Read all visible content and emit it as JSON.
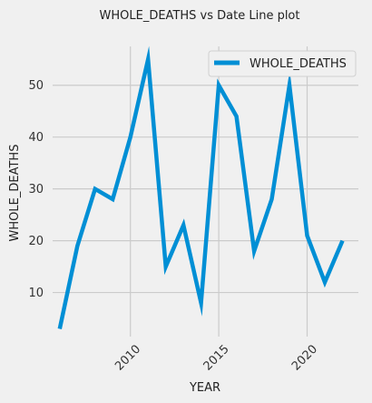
{
  "chart_data": {
    "type": "line",
    "title": "WHOLE_DEATHS vs Date Line plot",
    "xlabel": "YEAR",
    "ylabel": "WHOLE_DEATHS",
    "xlim": [
      2005.6,
      2022.9
    ],
    "ylim": [
      1.5,
      57.5
    ],
    "x_ticks": [
      2010,
      2015,
      2020
    ],
    "y_ticks": [
      10,
      20,
      30,
      40,
      50
    ],
    "grid": true,
    "legend_position": "top-right",
    "series": [
      {
        "name": "WHOLE_DEATHS",
        "color": "#008fd5",
        "x": [
          2006,
          2007,
          2008,
          2009,
          2010,
          2011,
          2012,
          2013,
          2014,
          2015,
          2016,
          2017,
          2018,
          2019,
          2020,
          2021,
          2022
        ],
        "y": [
          3,
          19,
          30,
          28,
          40,
          55,
          15,
          23,
          8,
          50,
          44,
          18,
          28,
          50,
          21,
          12,
          20
        ]
      }
    ]
  }
}
